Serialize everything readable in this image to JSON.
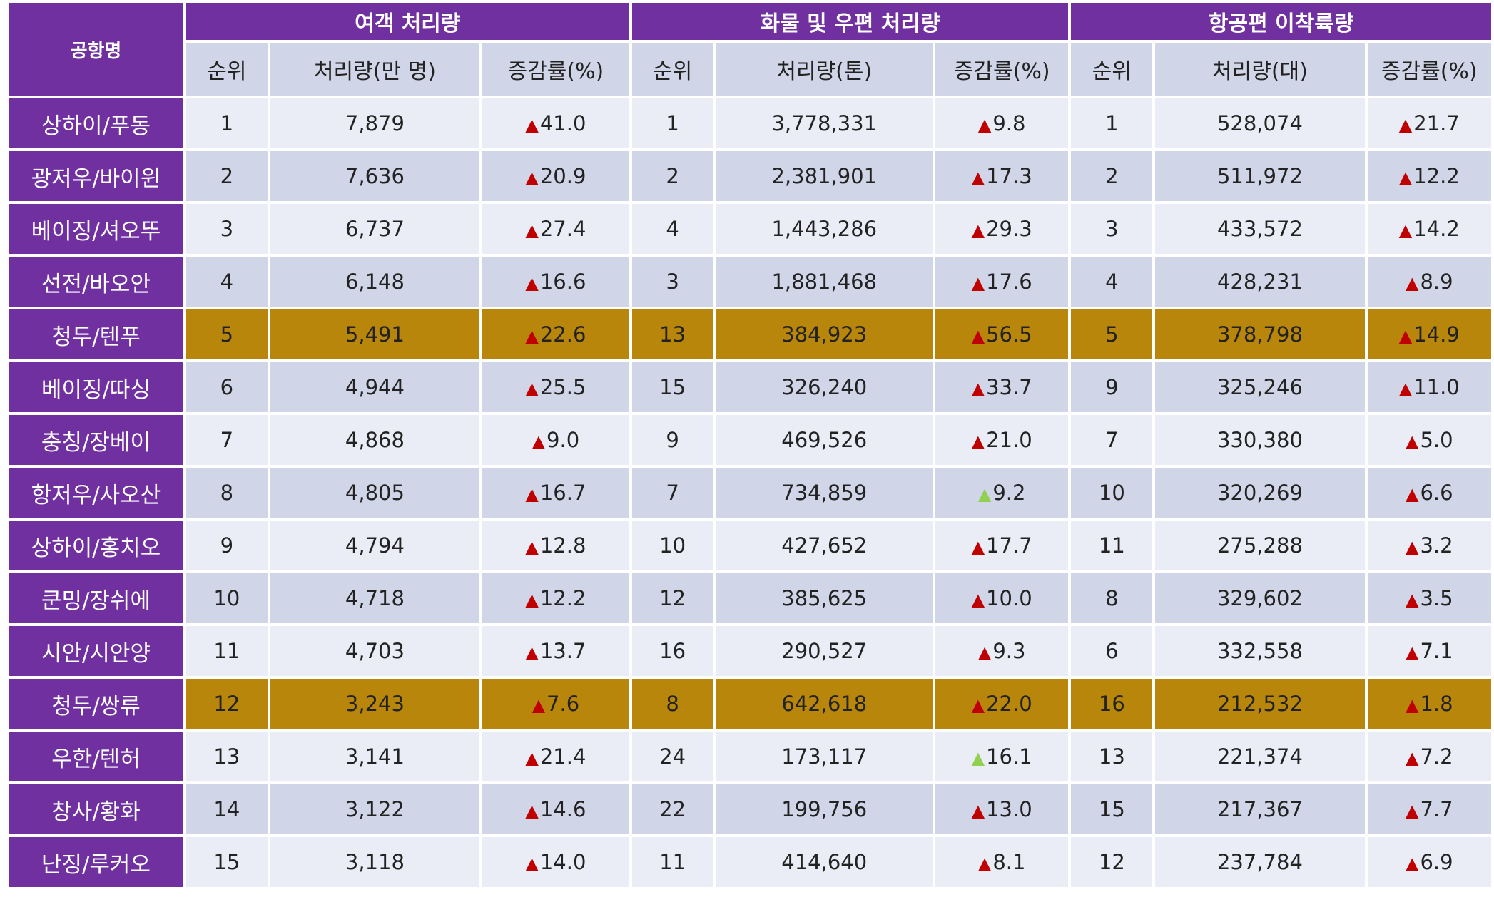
{
  "header": {
    "airport_label": "공항명",
    "groups": [
      "여객 처리량",
      "화물 및 우편 처리량",
      "항공편 이착륙량"
    ],
    "subs": [
      "순위",
      "처리량(만 명)",
      "증감률(%)",
      "순위",
      "처리량(톤)",
      "증감률(%)",
      "순위",
      "처리량(대)",
      "증감률(%)"
    ]
  },
  "colors": {
    "header_purple": "#7030a0",
    "row_light": "#eaedf6",
    "row_dark": "#d0d6e8",
    "highlight": "#b8860b",
    "up_red": "#c00000",
    "up_green": "#92d050"
  },
  "triangle_glyph": "▲",
  "rows": [
    {
      "name": "상하이/푸동",
      "highlight": false,
      "vals": [
        "1",
        "7,879",
        "41.0",
        "1",
        "3,778,331",
        "9.8",
        "1",
        "528,074",
        "21.7"
      ],
      "tri": [
        "red",
        "red",
        "red"
      ]
    },
    {
      "name": "광저우/바이윈",
      "highlight": false,
      "vals": [
        "2",
        "7,636",
        "20.9",
        "2",
        "2,381,901",
        "17.3",
        "2",
        "511,972",
        "12.2"
      ],
      "tri": [
        "red",
        "red",
        "red"
      ]
    },
    {
      "name": "베이징/셔오뚜",
      "highlight": false,
      "vals": [
        "3",
        "6,737",
        "27.4",
        "4",
        "1,443,286",
        "29.3",
        "3",
        "433,572",
        "14.2"
      ],
      "tri": [
        "red",
        "red",
        "red"
      ]
    },
    {
      "name": "선전/바오안",
      "highlight": false,
      "vals": [
        "4",
        "6,148",
        "16.6",
        "3",
        "1,881,468",
        "17.6",
        "4",
        "428,231",
        "8.9"
      ],
      "tri": [
        "red",
        "red",
        "red"
      ]
    },
    {
      "name": "청두/텐푸",
      "highlight": true,
      "vals": [
        "5",
        "5,491",
        "22.6",
        "13",
        "384,923",
        "56.5",
        "5",
        "378,798",
        "14.9"
      ],
      "tri": [
        "red",
        "red",
        "red"
      ]
    },
    {
      "name": "베이징/따싱",
      "highlight": false,
      "vals": [
        "6",
        "4,944",
        "25.5",
        "15",
        "326,240",
        "33.7",
        "9",
        "325,246",
        "11.0"
      ],
      "tri": [
        "red",
        "red",
        "red"
      ]
    },
    {
      "name": "충칭/장베이",
      "highlight": false,
      "vals": [
        "7",
        "4,868",
        "9.0",
        "9",
        "469,526",
        "21.0",
        "7",
        "330,380",
        "5.0"
      ],
      "tri": [
        "red",
        "red",
        "red"
      ]
    },
    {
      "name": "항저우/사오산",
      "highlight": false,
      "vals": [
        "8",
        "4,805",
        "16.7",
        "7",
        "734,859",
        "9.2",
        "10",
        "320,269",
        "6.6"
      ],
      "tri": [
        "red",
        "green",
        "red"
      ]
    },
    {
      "name": "상하이/홍치오",
      "highlight": false,
      "vals": [
        "9",
        "4,794",
        "12.8",
        "10",
        "427,652",
        "17.7",
        "11",
        "275,288",
        "3.2"
      ],
      "tri": [
        "red",
        "red",
        "red"
      ]
    },
    {
      "name": "쿤밍/장쉬에",
      "highlight": false,
      "vals": [
        "10",
        "4,718",
        "12.2",
        "12",
        "385,625",
        "10.0",
        "8",
        "329,602",
        "3.5"
      ],
      "tri": [
        "red",
        "red",
        "red"
      ]
    },
    {
      "name": "시안/시안양",
      "highlight": false,
      "vals": [
        "11",
        "4,703",
        "13.7",
        "16",
        "290,527",
        "9.3",
        "6",
        "332,558",
        "7.1"
      ],
      "tri": [
        "red",
        "red",
        "red"
      ]
    },
    {
      "name": "청두/쌍류",
      "highlight": true,
      "vals": [
        "12",
        "3,243",
        "7.6",
        "8",
        "642,618",
        "22.0",
        "16",
        "212,532",
        "1.8"
      ],
      "tri": [
        "red",
        "red",
        "red"
      ]
    },
    {
      "name": "우한/텐허",
      "highlight": false,
      "vals": [
        "13",
        "3,141",
        "21.4",
        "24",
        "173,117",
        "16.1",
        "13",
        "221,374",
        "7.2"
      ],
      "tri": [
        "red",
        "green",
        "red"
      ]
    },
    {
      "name": "창사/황화",
      "highlight": false,
      "vals": [
        "14",
        "3,122",
        "14.6",
        "22",
        "199,756",
        "13.0",
        "15",
        "217,367",
        "7.7"
      ],
      "tri": [
        "red",
        "red",
        "red"
      ]
    },
    {
      "name": "난징/루커오",
      "highlight": false,
      "vals": [
        "15",
        "3,118",
        "14.0",
        "11",
        "414,640",
        "8.1",
        "12",
        "237,784",
        "6.9"
      ],
      "tri": [
        "red",
        "red",
        "red"
      ]
    }
  ]
}
